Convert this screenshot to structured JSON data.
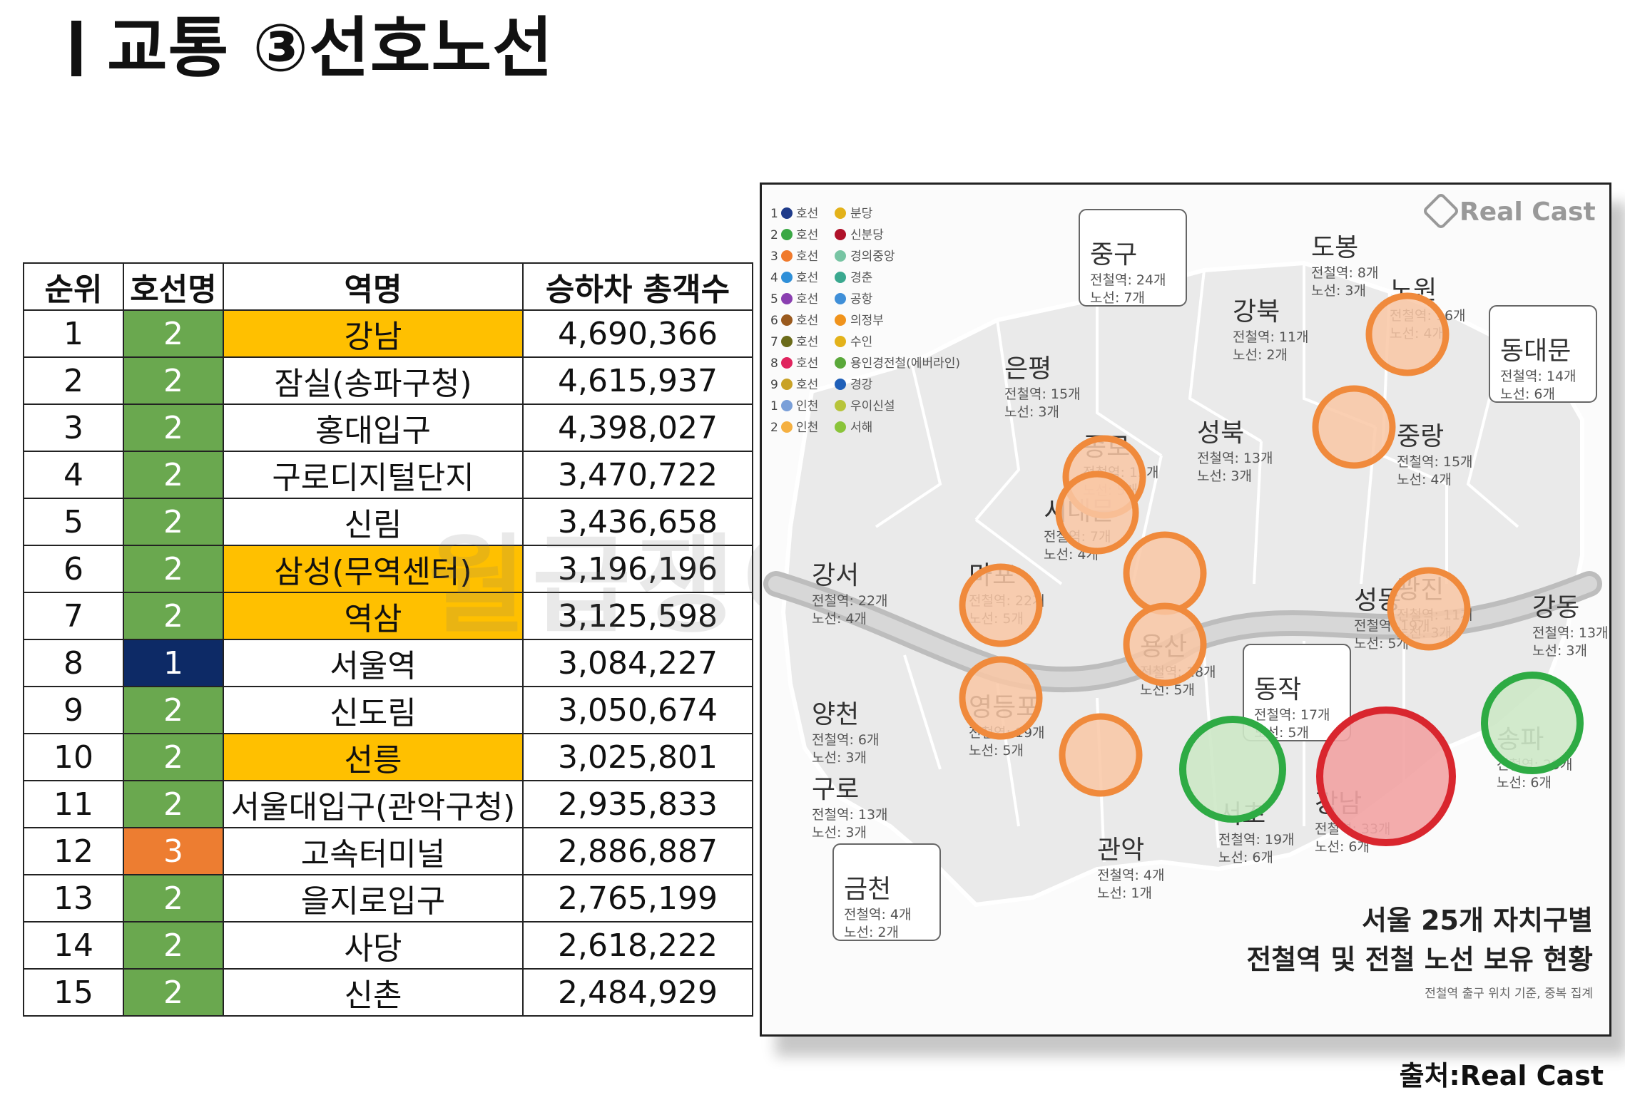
{
  "title": "교통 ③선호노선",
  "table": {
    "headers": [
      "순위",
      "호선명",
      "역명",
      "승하차 총객수"
    ],
    "rows": [
      {
        "rank": "1",
        "line": "2",
        "station": "강남",
        "passengers": "4,690,366",
        "highlight": true
      },
      {
        "rank": "2",
        "line": "2",
        "station": "잠실(송파구청)",
        "passengers": "4,615,937",
        "highlight": false
      },
      {
        "rank": "3",
        "line": "2",
        "station": "홍대입구",
        "passengers": "4,398,027",
        "highlight": false
      },
      {
        "rank": "4",
        "line": "2",
        "station": "구로디지털단지",
        "passengers": "3,470,722",
        "highlight": false
      },
      {
        "rank": "5",
        "line": "2",
        "station": "신림",
        "passengers": "3,436,658",
        "highlight": false
      },
      {
        "rank": "6",
        "line": "2",
        "station": "삼성(무역센터)",
        "passengers": "3,196,196",
        "highlight": true
      },
      {
        "rank": "7",
        "line": "2",
        "station": "역삼",
        "passengers": "3,125,598",
        "highlight": true
      },
      {
        "rank": "8",
        "line": "1",
        "station": "서울역",
        "passengers": "3,084,227",
        "highlight": false
      },
      {
        "rank": "9",
        "line": "2",
        "station": "신도림",
        "passengers": "3,050,674",
        "highlight": false
      },
      {
        "rank": "10",
        "line": "2",
        "station": "선릉",
        "passengers": "3,025,801",
        "highlight": true
      },
      {
        "rank": "11",
        "line": "2",
        "station": "서울대입구(관악구청)",
        "passengers": "2,935,833",
        "highlight": false
      },
      {
        "rank": "12",
        "line": "3",
        "station": "고속터미널",
        "passengers": "2,886,887",
        "highlight": false
      },
      {
        "rank": "13",
        "line": "2",
        "station": "을지로입구",
        "passengers": "2,765,199",
        "highlight": false
      },
      {
        "rank": "14",
        "line": "2",
        "station": "사당",
        "passengers": "2,618,222",
        "highlight": false
      },
      {
        "rank": "15",
        "line": "2",
        "station": "신촌",
        "passengers": "2,484,929",
        "highlight": false
      }
    ]
  },
  "line_colors": {
    "1": "#0d2a66",
    "2": "#6aa84f",
    "3": "#ed7d31",
    "highlight": "#ffc000"
  },
  "watermark": "월급쟁이부자들",
  "map": {
    "brand": "Real Cast",
    "legend": [
      {
        "num": "1",
        "label": "호선",
        "color": "#1f3b8a"
      },
      {
        "num": "2",
        "label": "호선",
        "color": "#3aa845"
      },
      {
        "num": "3",
        "label": "호선",
        "color": "#f07a2c"
      },
      {
        "num": "4",
        "label": "호선",
        "color": "#2f8fd8"
      },
      {
        "num": "5",
        "label": "호선",
        "color": "#8a3fb0"
      },
      {
        "num": "6",
        "label": "호선",
        "color": "#9a5a1e"
      },
      {
        "num": "7",
        "label": "호선",
        "color": "#6b6b1a"
      },
      {
        "num": "8",
        "label": "호선",
        "color": "#e0245e"
      },
      {
        "num": "9",
        "label": "호선",
        "color": "#c9a227"
      },
      {
        "num": "1",
        "label": "인천",
        "color": "#7a9fd8"
      },
      {
        "num": "2",
        "label": "인천",
        "color": "#f5b041"
      }
    ],
    "legend2": [
      {
        "label": "분당",
        "color": "#e3b21a"
      },
      {
        "label": "신분당",
        "color": "#b0122a"
      },
      {
        "label": "경의중앙",
        "color": "#77c4a3"
      },
      {
        "label": "경춘",
        "color": "#3aa88f"
      },
      {
        "label": "공항",
        "color": "#3f8fd8"
      },
      {
        "label": "의정부",
        "color": "#f0931c"
      },
      {
        "label": "수인",
        "color": "#e3b21a"
      },
      {
        "label": "용인경전철(에버라인)",
        "color": "#5aa83a"
      },
      {
        "label": "경강",
        "color": "#1f5fb8"
      },
      {
        "label": "우이신설",
        "color": "#b7c43a"
      },
      {
        "label": "서해",
        "color": "#8ac43a"
      }
    ],
    "districts": [
      {
        "name": "도봉",
        "stations": "전철역: 8개",
        "lines": "노선: 3개"
      },
      {
        "name": "노원",
        "stations": "전철역: 16개",
        "lines": "노선: 4개"
      },
      {
        "name": "강북",
        "stations": "전철역: 11개",
        "lines": "노선: 2개"
      },
      {
        "name": "중구",
        "stations": "전철역: 24개",
        "lines": "노선: 7개"
      },
      {
        "name": "은평",
        "stations": "전철역: 15개",
        "lines": "노선: 3개"
      },
      {
        "name": "동대문",
        "stations": "전철역: 14개",
        "lines": "노선: 6개"
      },
      {
        "name": "종로",
        "stations": "전철역: 15개",
        "lines": "노선: 5개"
      },
      {
        "name": "성북",
        "stations": "전철역: 13개",
        "lines": "노선: 3개"
      },
      {
        "name": "중랑",
        "stations": "전철역: 15개",
        "lines": "노선: 4개"
      },
      {
        "name": "서대문",
        "stations": "전철역: 7개",
        "lines": "노선: 4개"
      },
      {
        "name": "강서",
        "stations": "전철역: 22개",
        "lines": "노선: 4개"
      },
      {
        "name": "마포",
        "stations": "전철역: 22개",
        "lines": "노선: 5개"
      },
      {
        "name": "성동",
        "stations": "전철역: 19개",
        "lines": "노선: 5개"
      },
      {
        "name": "광진",
        "stations": "전철역: 11개",
        "lines": "노선: 3개"
      },
      {
        "name": "강동",
        "stations": "전철역: 13개",
        "lines": "노선: 3개"
      },
      {
        "name": "용산",
        "stations": "전철역: 18개",
        "lines": "노선: 5개"
      },
      {
        "name": "양천",
        "stations": "전철역: 6개",
        "lines": "노선: 3개"
      },
      {
        "name": "영등포",
        "stations": "전철역: 19개",
        "lines": "노선: 5개"
      },
      {
        "name": "동작",
        "stations": "전철역: 17개",
        "lines": "노선: 5개"
      },
      {
        "name": "송파",
        "stations": "전철역: 29개",
        "lines": "노선: 6개"
      },
      {
        "name": "구로",
        "stations": "전철역: 13개",
        "lines": "노선: 3개"
      },
      {
        "name": "서초",
        "stations": "전철역: 19개",
        "lines": "노선: 6개"
      },
      {
        "name": "강남",
        "stations": "전철역: 33개",
        "lines": "노선: 6개"
      },
      {
        "name": "관악",
        "stations": "전철역: 4개",
        "lines": "노선: 1개"
      },
      {
        "name": "금천",
        "stations": "전철역: 4개",
        "lines": "노선: 2개"
      }
    ],
    "caption_line1": "서울 25개 자치구별",
    "caption_line2": "전철역 및 전철 노선 보유 현황",
    "caption_note": "전철역 출구 위치 기준, 중복 집계",
    "marker_colors": {
      "orange": "#f08a3c",
      "orange_fill": "#f9c7a4",
      "red": "#d9262e",
      "red_fill": "#f2a3a3",
      "green": "#2eab44",
      "green_fill": "#cde8c6"
    }
  },
  "source": "출처:Real Cast"
}
